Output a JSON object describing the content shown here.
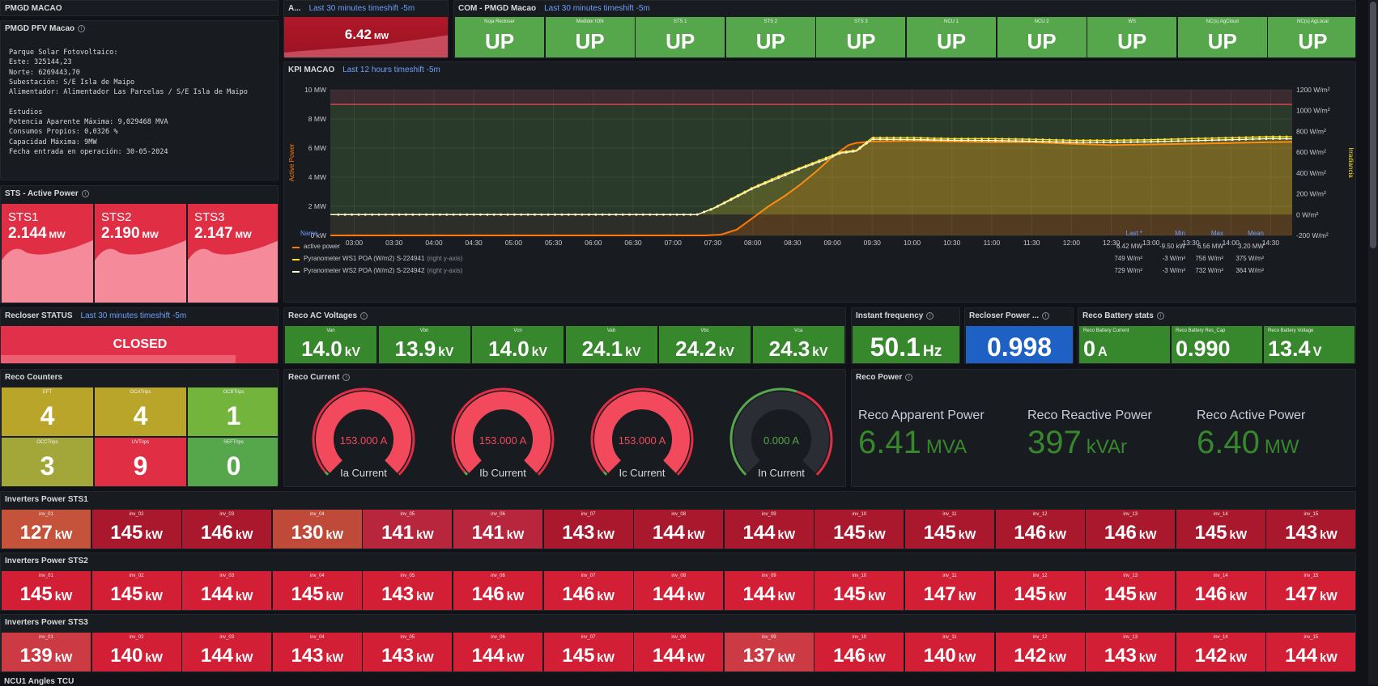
{
  "header": {
    "left_title": "PMGD MACAO",
    "a_title": "A...",
    "a_timeshift": "Last 30 minutes timeshift -5m",
    "com_title": "COM - PMGD Macao",
    "com_timeshift": "Last 30 minutes timeshift -5m"
  },
  "info_panel": {
    "title": "PMGD PFV Macao",
    "lines": [
      "Parque Solar Fotovoltaico:",
      "Este: 325144,23",
      "Norte: 6269443,70",
      "Subestación: S/E Isla de Maipo",
      "Alimentador: Alimentador Las Parcelas / S/E Isla de Maipo",
      "",
      "Estudios",
      "Potencia Aparente Máxima: 9,029468 MVA",
      "Consumos Propios: 0,0326 %",
      "Capacidad Máxima: 9MW",
      "Fecha entrada en operación: 30-05-2024"
    ]
  },
  "active_power_stat": {
    "value": "6.42",
    "unit": "MW"
  },
  "com_status": [
    {
      "label": "Noja Recloser",
      "value": "UP"
    },
    {
      "label": "Medidor ION",
      "value": "UP"
    },
    {
      "label": "STS 1",
      "value": "UP"
    },
    {
      "label": "STS 2",
      "value": "UP"
    },
    {
      "label": "STS 3",
      "value": "UP"
    },
    {
      "label": "NCU 1",
      "value": "UP"
    },
    {
      "label": "NCU 2",
      "value": "UP"
    },
    {
      "label": "WS",
      "value": "UP"
    },
    {
      "label": "NC(s) AgCloud",
      "value": "UP"
    },
    {
      "label": "NC(s) AgLocal",
      "value": "UP"
    }
  ],
  "sts_panel": {
    "title": "STS - Active Power",
    "items": [
      {
        "name": "STS1",
        "value": "2.144",
        "unit": "MW"
      },
      {
        "name": "STS2",
        "value": "2.190",
        "unit": "MW"
      },
      {
        "name": "STS3",
        "value": "2.147",
        "unit": "MW"
      }
    ]
  },
  "kpi": {
    "title": "KPI MACAO",
    "timeshift": "Last 12 hours timeshift -5m",
    "legend_headers": [
      "Name",
      "Last *",
      "Min",
      "Max",
      "Mean"
    ],
    "legend": [
      {
        "name": "active power",
        "extra": "",
        "last": "6.42 MW",
        "min": "-9.50 kW",
        "max": "6.56 MW",
        "mean": "3.20 MW",
        "color": "#ff780a"
      },
      {
        "name": "Pyranometer WS1 POA (W/m2) S-224941",
        "extra": "(right y-axis)",
        "last": "749 W/m²",
        "min": "-3 W/m²",
        "max": "756 W/m²",
        "mean": "375 W/m²",
        "color": "#fade2a"
      },
      {
        "name": "Pyranometer WS2 POA (W/m2) S-224942",
        "extra": "(right y-axis)",
        "last": "729 W/m²",
        "min": "-3 W/m²",
        "max": "732 W/m²",
        "mean": "364 W/m²",
        "color": "#fffbd5"
      }
    ]
  },
  "chart_data": {
    "type": "line",
    "xlabel": "",
    "ylabel": "Active Power",
    "ylabel_right": "Irradiancia",
    "x_ticks": [
      "03:00",
      "03:30",
      "04:00",
      "04:30",
      "05:00",
      "05:30",
      "06:00",
      "06:30",
      "07:00",
      "07:30",
      "08:00",
      "08:30",
      "09:00",
      "09:30",
      "10:00",
      "10:30",
      "11:00",
      "11:30",
      "12:00",
      "12:30",
      "13:00",
      "13:30",
      "14:00",
      "14:30"
    ],
    "y_ticks_left": [
      "0 kW",
      "2 MW",
      "4 MW",
      "6 MW",
      "8 MW",
      "10 MW"
    ],
    "ylim": [
      0,
      10
    ],
    "y_ticks_right": [
      "-200 W/m²",
      "0 W/m²",
      "200 W/m²",
      "400 W/m²",
      "600 W/m²",
      "800 W/m²",
      "1000 W/m²",
      "1200 W/m²"
    ],
    "ylim_right": [
      -200,
      1200
    ],
    "threshold": {
      "value": 9,
      "color": "#f2495c"
    },
    "series": [
      {
        "name": "active power",
        "axis": "left",
        "x": [
          2.7,
          7.4,
          7.6,
          7.8,
          8.0,
          8.2,
          8.4,
          8.6,
          8.8,
          9.0,
          9.2,
          9.3,
          9.5,
          10.0,
          10.5,
          11.0,
          11.5,
          12.0,
          12.5,
          13.0,
          13.5,
          14.0,
          14.5,
          14.77
        ],
        "values": [
          0,
          0,
          0.05,
          0.4,
          1.2,
          2.0,
          2.7,
          3.5,
          4.4,
          5.4,
          6.2,
          6.35,
          6.45,
          6.5,
          6.45,
          6.4,
          6.4,
          6.3,
          6.2,
          6.25,
          6.3,
          6.35,
          6.4,
          6.42
        ]
      },
      {
        "name": "Pyranometer WS1 POA (W/m2) S-224941",
        "axis": "right",
        "x": [
          2.7,
          7.3,
          7.5,
          7.8,
          8.0,
          8.3,
          8.6,
          8.9,
          9.1,
          9.3,
          9.5,
          10.0,
          10.5,
          11.0,
          11.5,
          12.0,
          12.5,
          13.0,
          13.5,
          14.0,
          14.5,
          14.77
        ],
        "values": [
          0,
          0,
          60,
          180,
          260,
          360,
          450,
          540,
          600,
          620,
          740,
          740,
          730,
          730,
          725,
          715,
          715,
          720,
          730,
          740,
          750,
          749
        ]
      },
      {
        "name": "Pyranometer WS2 POA (W/m2) S-224942",
        "axis": "right",
        "x": [
          2.7,
          7.3,
          7.5,
          7.8,
          8.0,
          8.3,
          8.6,
          8.9,
          9.1,
          9.3,
          9.5,
          10.0,
          10.5,
          11.0,
          11.5,
          12.0,
          12.5,
          13.0,
          13.5,
          14.0,
          14.5,
          14.77
        ],
        "values": [
          0,
          0,
          55,
          170,
          250,
          345,
          440,
          525,
          590,
          610,
          725,
          722,
          715,
          712,
          705,
          695,
          695,
          700,
          710,
          720,
          730,
          729
        ]
      }
    ]
  },
  "recloser": {
    "title": "Recloser STATUS",
    "timeshift": "Last 30 minutes timeshift -5m",
    "value": "CLOSED"
  },
  "ac_voltages": {
    "title": "Reco AC Voltages",
    "items": [
      {
        "label": "Van",
        "value": "14.0",
        "unit": "kV"
      },
      {
        "label": "Vbn",
        "value": "13.9",
        "unit": "kV"
      },
      {
        "label": "Vcn",
        "value": "14.0",
        "unit": "kV"
      },
      {
        "label": "Vab",
        "value": "24.1",
        "unit": "kV"
      },
      {
        "label": "Vbc",
        "value": "24.2",
        "unit": "kV"
      },
      {
        "label": "Vca",
        "value": "24.3",
        "unit": "kV"
      }
    ]
  },
  "frequency": {
    "title": "Instant frequency",
    "value": "50.1",
    "unit": "Hz"
  },
  "power_factor": {
    "title": "Recloser Power ...",
    "value": "0.998"
  },
  "battery": {
    "title": "Reco Battery stats",
    "items": [
      {
        "label": "Reco Battery Current",
        "value": "0",
        "unit": "A"
      },
      {
        "label": "Reco Battery Res_Cap",
        "value": "0.990",
        "unit": ""
      },
      {
        "label": "Reco Battery Voltage",
        "value": "13.4",
        "unit": "V"
      }
    ]
  },
  "counters": {
    "title": "Reco Counters",
    "items": [
      {
        "label": "EFT",
        "value": "4",
        "color": "#b8a52a"
      },
      {
        "label": "OCATrips",
        "value": "4",
        "color": "#b8a52a"
      },
      {
        "label": "OCBTrips",
        "value": "1",
        "color": "#73b43c"
      },
      {
        "label": "OCCTrips",
        "value": "3",
        "color": "#a3a73a"
      },
      {
        "label": "UVTrips",
        "value": "9",
        "color": "#e02f44"
      },
      {
        "label": "SEFTrips",
        "value": "0",
        "color": "#56a64b"
      }
    ]
  },
  "current": {
    "title": "Reco Current",
    "gauges": [
      {
        "label": "Ia Current",
        "value": "153.000 A",
        "fraction": 1.0
      },
      {
        "label": "Ib Current",
        "value": "153.000 A",
        "fraction": 1.0
      },
      {
        "label": "Ic Current",
        "value": "153.000 A",
        "fraction": 1.0
      },
      {
        "label": "In Current",
        "value": "0.000 A",
        "fraction": 0.0
      }
    ]
  },
  "reco_power": {
    "title": "Reco Power",
    "items": [
      {
        "label": "Reco Apparent Power",
        "value": "6.41",
        "unit": "MVA"
      },
      {
        "label": "Reco Reactive Power",
        "value": "397",
        "unit": "kVAr"
      },
      {
        "label": "Reco Active Power",
        "value": "6.40",
        "unit": "MW"
      }
    ]
  },
  "inverters": [
    {
      "title": "Inverters Power STS1",
      "unit": "kW",
      "items": [
        {
          "label": "inv_01",
          "value": "127"
        },
        {
          "label": "inv_02",
          "value": "145"
        },
        {
          "label": "inv_03",
          "value": "146"
        },
        {
          "label": "inv_04",
          "value": "130"
        },
        {
          "label": "inv_05",
          "value": "141"
        },
        {
          "label": "inv_06",
          "value": "141"
        },
        {
          "label": "inv_07",
          "value": "143"
        },
        {
          "label": "inv_08",
          "value": "144"
        },
        {
          "label": "inv_09",
          "value": "144"
        },
        {
          "label": "inv_10",
          "value": "145"
        },
        {
          "label": "inv_11",
          "value": "145"
        },
        {
          "label": "inv_12",
          "value": "146"
        },
        {
          "label": "inv_13",
          "value": "146"
        },
        {
          "label": "inv_14",
          "value": "145"
        },
        {
          "label": "inv_15",
          "value": "143"
        }
      ]
    },
    {
      "title": "Inverters Power STS2",
      "unit": "kW",
      "items": [
        {
          "label": "inv_01",
          "value": "145"
        },
        {
          "label": "inv_02",
          "value": "145"
        },
        {
          "label": "inv_03",
          "value": "144"
        },
        {
          "label": "inv_04",
          "value": "145"
        },
        {
          "label": "inv_05",
          "value": "143"
        },
        {
          "label": "inv_06",
          "value": "146"
        },
        {
          "label": "inv_07",
          "value": "146"
        },
        {
          "label": "inv_08",
          "value": "144"
        },
        {
          "label": "inv_09",
          "value": "144"
        },
        {
          "label": "inv_10",
          "value": "145"
        },
        {
          "label": "inv_11",
          "value": "147"
        },
        {
          "label": "inv_12",
          "value": "145"
        },
        {
          "label": "inv_13",
          "value": "145"
        },
        {
          "label": "inv_14",
          "value": "146"
        },
        {
          "label": "inv_15",
          "value": "147"
        }
      ]
    },
    {
      "title": "Inverters Power STS3",
      "unit": "kW",
      "items": [
        {
          "label": "inv_01",
          "value": "139"
        },
        {
          "label": "inv_02",
          "value": "140"
        },
        {
          "label": "inv_03",
          "value": "144"
        },
        {
          "label": "inv_04",
          "value": "143"
        },
        {
          "label": "inv_05",
          "value": "143"
        },
        {
          "label": "inv_06",
          "value": "144"
        },
        {
          "label": "inv_07",
          "value": "145"
        },
        {
          "label": "inv_08",
          "value": "144"
        },
        {
          "label": "inv_09",
          "value": "137"
        },
        {
          "label": "inv_10",
          "value": "146"
        },
        {
          "label": "inv_11",
          "value": "140"
        },
        {
          "label": "inv_12",
          "value": "142"
        },
        {
          "label": "inv_13",
          "value": "143"
        },
        {
          "label": "inv_14",
          "value": "142"
        },
        {
          "label": "inv_15",
          "value": "144"
        }
      ]
    }
  ],
  "bottom_title": "NCU1 Angles TCU",
  "colors": {
    "green": "#37872d",
    "red": "#c4162a",
    "blue": "#1f60c4",
    "accent": "#6e9fff"
  }
}
